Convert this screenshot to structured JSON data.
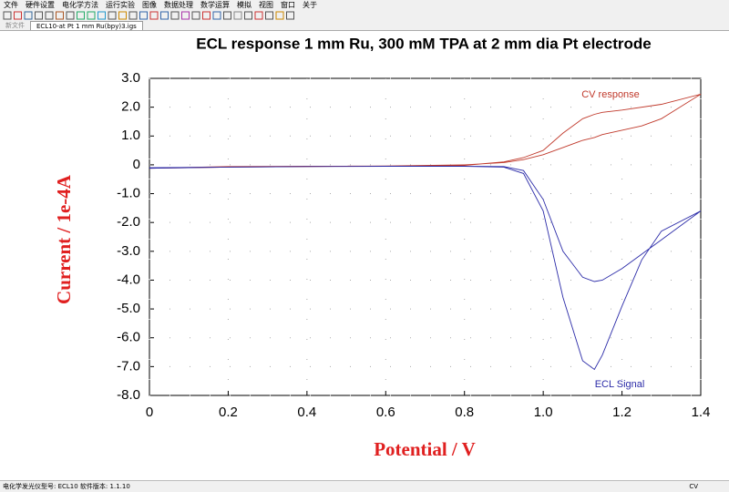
{
  "menu": [
    "文件",
    "硬件设置",
    "电化学方法",
    "运行实验",
    "图像",
    "数据处理",
    "数学运算",
    "模拟",
    "视图",
    "窗口",
    "关于"
  ],
  "tabs": [
    "新文件",
    "ECL10-at Pt 1 mm Ru(bpy)3.igs"
  ],
  "status": {
    "left": "电化学发光仪型号: ECL10  软件版本: 1.1.10",
    "right": "CV"
  },
  "chart_data": {
    "type": "line",
    "title": "ECL response 1 mm Ru, 300 mM TPA at 2 mm dia Pt electrode",
    "x_label": "Potential / V",
    "y_label": "Current / 1e-4A",
    "x": [
      0,
      0.2,
      0.4,
      0.6,
      0.8,
      0.9,
      0.95,
      1.0,
      1.05,
      1.1,
      1.13,
      1.15,
      1.2,
      1.3,
      1.4,
      1.3,
      1.25,
      1.2,
      1.15,
      1.13,
      1.1,
      1.05,
      1.0,
      0.95,
      0.9,
      0.8,
      0.6,
      0.4,
      0.2,
      0
    ],
    "series": [
      {
        "name": "CV response",
        "color": "#c0392b",
        "values": [
          -0.12,
          -0.06,
          -0.05,
          -0.04,
          -0.02,
          0.1,
          0.25,
          0.5,
          1.1,
          1.6,
          1.75,
          1.82,
          1.9,
          2.1,
          2.45,
          1.6,
          1.35,
          1.2,
          1.05,
          0.95,
          0.85,
          0.6,
          0.35,
          0.18,
          0.08,
          0.0,
          -0.04,
          -0.06,
          -0.08,
          -0.12
        ]
      },
      {
        "name": "ECL Signal",
        "color": "#2b2ba8",
        "values": [
          -0.12,
          -0.08,
          -0.06,
          -0.05,
          -0.05,
          -0.06,
          -0.2,
          -1.2,
          -3.0,
          -3.9,
          -4.05,
          -4.0,
          -3.6,
          -2.6,
          -1.6,
          -2.3,
          -3.3,
          -4.9,
          -6.6,
          -7.1,
          -6.8,
          -4.6,
          -1.6,
          -0.3,
          -0.08,
          -0.05,
          -0.05,
          -0.06,
          -0.08,
          -0.1
        ]
      }
    ],
    "xlim": [
      0,
      1.4
    ],
    "xticks": [
      0,
      0.2,
      0.4,
      0.6,
      0.8,
      {
        "value": 1,
        "label": "1.0"
      },
      1.2,
      1.4
    ],
    "ylim": [
      -8,
      3
    ],
    "yticks": [
      {
        "value": 3,
        "label": "3.0"
      },
      {
        "value": 2,
        "label": "2.0"
      },
      {
        "value": 1,
        "label": "1.0"
      },
      0,
      {
        "value": -1,
        "label": "-1.0"
      },
      {
        "value": -2,
        "label": "-2.0"
      },
      {
        "value": -3,
        "label": "-3.0"
      },
      {
        "value": -4,
        "label": "-4.0"
      },
      {
        "value": -5,
        "label": "-5.0"
      },
      {
        "value": -6,
        "label": "-6.0"
      },
      {
        "value": -7,
        "label": "-7.0"
      },
      {
        "value": -8,
        "label": "-8.0"
      }
    ],
    "grid": true
  }
}
